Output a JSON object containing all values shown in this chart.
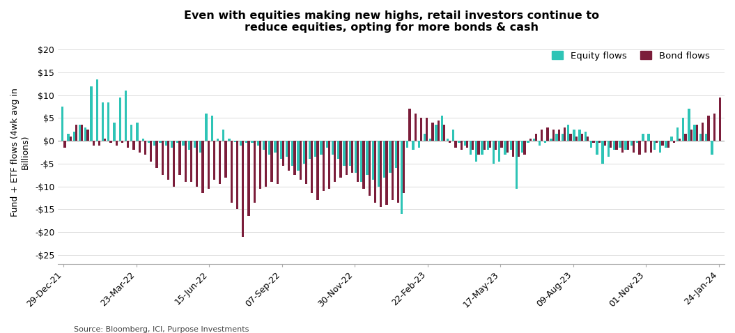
{
  "title": "Even with equities making new highs, retail investors continue to\nreduce equities, opting for more bonds & cash",
  "ylabel": "Fund + ETF flows (4wk avg in\nBillions)",
  "source": "Source: Bloomberg, ICI, Purpose Investments",
  "equity_color": "#2EC4B6",
  "bond_color": "#7B1D3A",
  "background_color": "#FFFFFF",
  "ylim": [
    -27,
    22
  ],
  "yticks": [
    -25,
    -20,
    -15,
    -10,
    -5,
    0,
    5,
    10,
    15,
    20
  ],
  "ytick_labels": [
    "-$25",
    "-$20",
    "-$15",
    "-$10",
    "-$5",
    "$0",
    "$5",
    "$10",
    "$15",
    "$20"
  ],
  "xtick_labels": [
    "29-Dec-21",
    "23-Mar-22",
    "15-Jun-22",
    "07-Sep-22",
    "30-Nov-22",
    "22-Feb-23",
    "17-May-23",
    "09-Aug-23",
    "01-Nov-23",
    "24-Jan-24"
  ],
  "equity_flows": [
    7.5,
    1.5,
    2.0,
    3.5,
    3.0,
    12.0,
    13.5,
    8.5,
    8.5,
    4.0,
    9.5,
    11.0,
    3.5,
    4.0,
    0.5,
    -0.5,
    -1.0,
    -0.5,
    -1.0,
    -1.5,
    -0.5,
    -1.0,
    -2.0,
    -1.5,
    -2.5,
    6.0,
    5.5,
    0.5,
    2.5,
    0.5,
    -0.3,
    -1.0,
    -0.5,
    -0.5,
    -1.0,
    -2.0,
    -3.0,
    -2.5,
    -4.0,
    -3.5,
    -5.5,
    -6.5,
    -5.0,
    -4.0,
    -3.5,
    -3.0,
    -1.5,
    -3.0,
    -4.0,
    -5.5,
    -5.5,
    -7.0,
    -9.0,
    -7.5,
    -8.5,
    -10.0,
    -8.0,
    -7.0,
    -6.0,
    -16.0,
    -1.5,
    -2.0,
    -1.5,
    1.5,
    0.5,
    3.5,
    5.5,
    0.5,
    2.5,
    -0.5,
    -1.0,
    -3.0,
    -4.5,
    -3.0,
    -2.0,
    -5.0,
    -4.5,
    -3.0,
    -2.0,
    -10.5,
    -2.5,
    -0.5,
    0.5,
    -1.0,
    -0.5,
    0.5,
    1.5,
    1.5,
    3.5,
    2.5,
    2.5,
    2.0,
    -1.5,
    -3.0,
    -5.0,
    -3.5,
    -2.0,
    -1.5,
    -2.0,
    -1.0,
    -0.5,
    1.5,
    1.5,
    -2.0,
    -2.5,
    -1.5,
    1.0,
    3.0,
    5.0,
    7.0,
    3.5,
    1.5,
    1.5,
    -3.0
  ],
  "bond_flows": [
    -1.5,
    1.0,
    3.5,
    3.5,
    2.5,
    -1.0,
    -1.0,
    0.5,
    -0.5,
    -1.0,
    -0.5,
    -1.5,
    -2.0,
    -2.5,
    -3.0,
    -4.5,
    -6.0,
    -7.5,
    -8.5,
    -10.0,
    -7.5,
    -9.0,
    -9.0,
    -10.0,
    -11.5,
    -10.5,
    -8.5,
    -9.5,
    -8.0,
    -13.5,
    -15.0,
    -21.0,
    -16.5,
    -13.5,
    -10.5,
    -10.0,
    -9.0,
    -9.5,
    -5.5,
    -6.5,
    -7.5,
    -8.5,
    -9.5,
    -11.5,
    -13.0,
    -11.0,
    -10.5,
    -9.0,
    -8.0,
    -7.5,
    -7.0,
    -9.0,
    -10.5,
    -12.0,
    -13.5,
    -14.5,
    -14.0,
    -13.0,
    -13.5,
    -11.5,
    7.0,
    6.0,
    5.0,
    5.0,
    4.0,
    4.5,
    3.5,
    -0.5,
    -1.5,
    -2.0,
    -1.5,
    -2.0,
    -3.0,
    -2.0,
    -1.5,
    -2.0,
    -1.5,
    -2.5,
    -3.5,
    -3.5,
    -3.0,
    0.5,
    1.5,
    2.5,
    3.0,
    2.5,
    2.5,
    3.0,
    1.5,
    1.0,
    1.5,
    1.0,
    -0.5,
    -0.5,
    -1.0,
    -1.5,
    -2.0,
    -2.5,
    -2.0,
    -2.5,
    -3.0,
    -2.5,
    -2.5,
    -0.5,
    -1.0,
    -1.5,
    -0.5,
    0.5,
    1.5,
    2.5,
    3.5,
    4.0,
    5.5,
    6.0,
    9.5
  ]
}
